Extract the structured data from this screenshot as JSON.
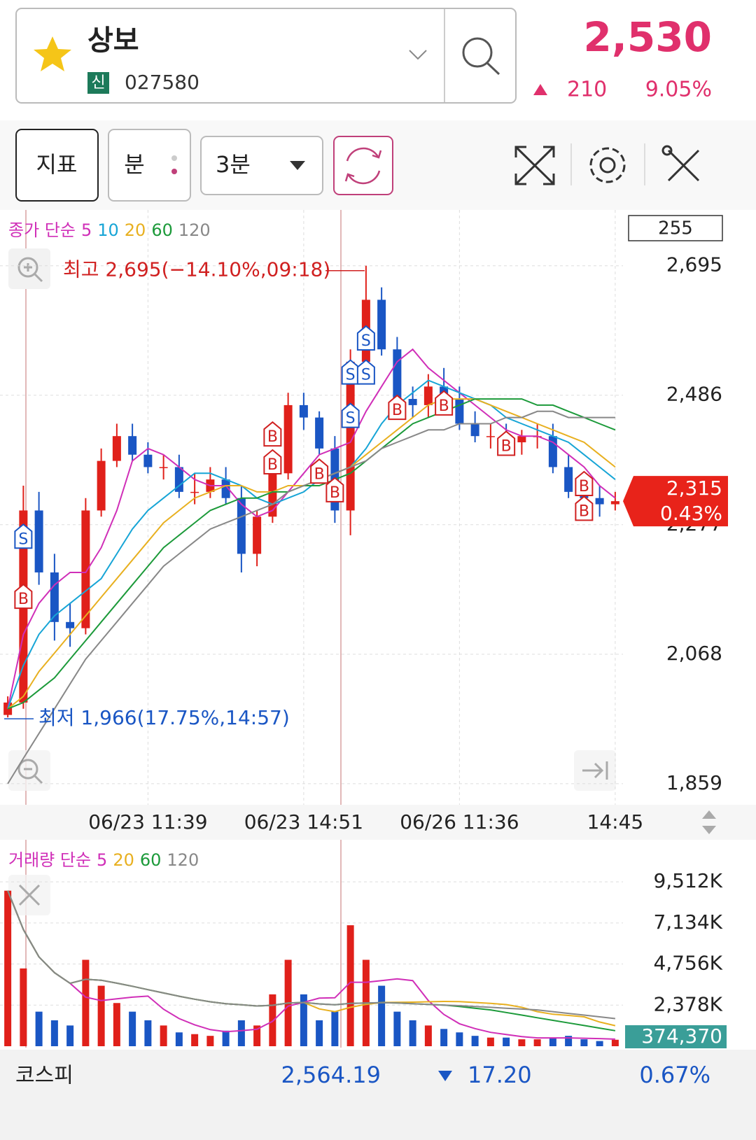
{
  "header": {
    "name": "상보",
    "badge": "신",
    "code": "027580",
    "price": "2,530",
    "change": "210",
    "change_pct": "9.05%"
  },
  "toolbar": {
    "indicator": "지표",
    "minute": "분",
    "interval": "3분"
  },
  "chart_data": [
    {
      "type": "candlestick",
      "legend_title": "종가 단순",
      "counter": "255",
      "high_note": "최고 2,695(−14.10%,09:18)",
      "low_note": "최저 1,966(17.75%,14:57)",
      "last_price_label": "2,315",
      "last_pct_label": "0.43%",
      "up_color": "#e0201a",
      "down_color": "#1a56c4",
      "categories": [
        null,
        null,
        null,
        null,
        null,
        null,
        null,
        null,
        null,
        "06/23 11:39",
        null,
        null,
        null,
        null,
        null,
        null,
        null,
        null,
        null,
        "06/23 14:51",
        null,
        null,
        null,
        null,
        null,
        null,
        null,
        null,
        null,
        "06/26 11:36",
        null,
        null,
        null,
        null,
        null,
        null,
        null,
        null,
        null,
        "14:45"
      ],
      "open": [
        1970,
        1990,
        2300,
        2200,
        2120,
        2110,
        2300,
        2380,
        2420,
        2390,
        2370,
        2370,
        2330,
        2330,
        2350,
        2320,
        2230,
        2290,
        2360,
        2470,
        2450,
        2400,
        2300,
        2540,
        2640,
        2560,
        2480,
        2470,
        2500,
        2480,
        2440,
        2420,
        2420,
        2410,
        2420,
        2420,
        2370,
        2330,
        2320,
        2310
      ],
      "high": [
        2000,
        2340,
        2330,
        2230,
        2150,
        2320,
        2400,
        2440,
        2440,
        2410,
        2390,
        2390,
        2360,
        2370,
        2370,
        2340,
        2300,
        2380,
        2490,
        2490,
        2460,
        2420,
        2560,
        2695,
        2660,
        2580,
        2500,
        2520,
        2530,
        2500,
        2460,
        2440,
        2440,
        2430,
        2440,
        2440,
        2390,
        2350,
        2340,
        2330
      ],
      "low": [
        1966,
        1980,
        2180,
        2090,
        2080,
        2100,
        2290,
        2370,
        2380,
        2360,
        2350,
        2320,
        2310,
        2320,
        2310,
        2200,
        2210,
        2280,
        2350,
        2430,
        2390,
        2280,
        2260,
        2520,
        2550,
        2470,
        2450,
        2450,
        2470,
        2430,
        2410,
        2400,
        2400,
        2390,
        2400,
        2360,
        2320,
        2300,
        2290,
        2300
      ],
      "close": [
        1990,
        2300,
        2200,
        2120,
        2110,
        2300,
        2380,
        2420,
        2390,
        2370,
        2370,
        2330,
        2330,
        2350,
        2320,
        2230,
        2290,
        2360,
        2470,
        2450,
        2400,
        2300,
        2540,
        2640,
        2560,
        2480,
        2470,
        2500,
        2480,
        2440,
        2420,
        2420,
        2410,
        2420,
        2420,
        2370,
        2330,
        2320,
        2310,
        2315
      ],
      "series": [
        {
          "name": "5",
          "color": "#d02fb8",
          "values": [
            1980,
            2100,
            2150,
            2180,
            2200,
            2200,
            2240,
            2300,
            2380,
            2400,
            2390,
            2370,
            2350,
            2340,
            2340,
            2310,
            2290,
            2300,
            2330,
            2360,
            2390,
            2400,
            2410,
            2460,
            2500,
            2540,
            2560,
            2530,
            2510,
            2490,
            2470,
            2450,
            2430,
            2420,
            2420,
            2410,
            2390,
            2370,
            2340,
            2320
          ]
        },
        {
          "name": "10",
          "color": "#17a5d6",
          "values": [
            1980,
            2050,
            2100,
            2130,
            2150,
            2170,
            2190,
            2230,
            2270,
            2300,
            2320,
            2340,
            2360,
            2360,
            2350,
            2340,
            2320,
            2310,
            2320,
            2330,
            2350,
            2360,
            2370,
            2400,
            2440,
            2470,
            2490,
            2510,
            2500,
            2490,
            2480,
            2470,
            2450,
            2440,
            2430,
            2420,
            2410,
            2390,
            2370,
            2350
          ]
        },
        {
          "name": "20",
          "color": "#e8b020",
          "values": [
            1980,
            2000,
            2040,
            2070,
            2100,
            2130,
            2160,
            2190,
            2220,
            2250,
            2280,
            2300,
            2320,
            2330,
            2340,
            2340,
            2330,
            2330,
            2340,
            2340,
            2350,
            2360,
            2370,
            2390,
            2410,
            2430,
            2450,
            2470,
            2480,
            2480,
            2480,
            2470,
            2460,
            2450,
            2440,
            2430,
            2420,
            2410,
            2390,
            2370
          ]
        },
        {
          "name": "60",
          "color": "#1c9a3a",
          "values": [
            1980,
            1990,
            2010,
            2030,
            2060,
            2090,
            2120,
            2150,
            2180,
            2210,
            2240,
            2260,
            2280,
            2300,
            2310,
            2320,
            2320,
            2330,
            2330,
            2340,
            2340,
            2350,
            2360,
            2380,
            2400,
            2420,
            2440,
            2450,
            2460,
            2470,
            2480,
            2480,
            2480,
            2480,
            2470,
            2470,
            2460,
            2450,
            2440,
            2430
          ]
        },
        {
          "name": "120",
          "color": "#888888",
          "values": [
            1859,
            1900,
            1940,
            1980,
            2020,
            2060,
            2090,
            2120,
            2150,
            2180,
            2210,
            2230,
            2250,
            2270,
            2280,
            2290,
            2300,
            2310,
            2330,
            2340,
            2350,
            2360,
            2370,
            2380,
            2400,
            2410,
            2420,
            2430,
            2430,
            2440,
            2440,
            2440,
            2450,
            2450,
            2460,
            2460,
            2450,
            2450,
            2450,
            2450
          ]
        }
      ],
      "markers": [
        {
          "text": "S",
          "bar": 1,
          "value": 2255
        },
        {
          "text": "B",
          "bar": 1,
          "value": 2158
        },
        {
          "text": "B",
          "bar": 17,
          "value": 2420
        },
        {
          "text": "B",
          "bar": 17,
          "value": 2375
        },
        {
          "text": "B",
          "bar": 20,
          "value": 2360
        },
        {
          "text": "B",
          "bar": 21,
          "value": 2330
        },
        {
          "text": "S",
          "bar": 22,
          "value": 2450
        },
        {
          "text": "S",
          "bar": 22,
          "value": 2520
        },
        {
          "text": "S",
          "bar": 23,
          "value": 2520
        },
        {
          "text": "S",
          "bar": 23,
          "value": 2575
        },
        {
          "text": "B",
          "bar": 25,
          "value": 2463
        },
        {
          "text": "B",
          "bar": 28,
          "value": 2470
        },
        {
          "text": "B",
          "bar": 32,
          "value": 2405
        },
        {
          "text": "B",
          "bar": 37,
          "value": 2340
        },
        {
          "text": "B",
          "bar": 37,
          "value": 2300
        }
      ],
      "ylim": [
        1825,
        2785
      ],
      "yticks": [
        {
          "value": 1859,
          "label": "1,859"
        },
        {
          "value": 2068,
          "label": "2,068"
        },
        {
          "value": 2277,
          "label": "2,277"
        },
        {
          "value": 2486,
          "label": "2,486"
        },
        {
          "value": 2695,
          "label": "2,695"
        }
      ],
      "grid": true
    },
    {
      "type": "bar",
      "legend_title": "거래량 단순",
      "last_label": "374,370",
      "values": [
        9000000,
        4500000,
        2000000,
        1500000,
        1200000,
        5000000,
        3500000,
        2500000,
        2000000,
        1500000,
        1200000,
        800000,
        700000,
        600000,
        900000,
        1500000,
        1200000,
        3000000,
        5000000,
        3000000,
        1500000,
        2000000,
        7000000,
        5000000,
        3500000,
        2000000,
        1500000,
        1200000,
        1000000,
        800000,
        600000,
        500000,
        500000,
        400000,
        400000,
        500000,
        600000,
        400000,
        300000,
        374370
      ],
      "series": [
        {
          "name": "5",
          "color": "#d02fb8",
          "values": [
            9000000,
            6750000,
            5170000,
            4250000,
            3640000,
            2840000,
            2640000,
            2740000,
            2840000,
            2900000,
            2140000,
            1600000,
            1240000,
            960000,
            840000,
            900000,
            980000,
            1440000,
            2320000,
            2540000,
            2780000,
            2800000,
            3700000,
            3700000,
            3800000,
            3900000,
            3800000,
            2640000,
            1840000,
            1300000,
            1020000,
            800000,
            680000,
            560000,
            480000,
            480000,
            480000,
            460000,
            440000,
            410000
          ]
        },
        {
          "name": "20",
          "color": "#e8b020",
          "values": [
            9000000,
            6750000,
            5170000,
            4250000,
            3640000,
            3870000,
            3820000,
            3650000,
            3470000,
            3270000,
            3080000,
            2890000,
            2720000,
            2570000,
            2460000,
            2400000,
            2330000,
            2370000,
            2500000,
            2530000,
            2160000,
            2000000,
            2250000,
            2420000,
            2530000,
            2540000,
            2550000,
            2570000,
            2590000,
            2580000,
            2530000,
            2480000,
            2410000,
            2250000,
            2000000,
            1850000,
            1780000,
            1700000,
            1400000,
            1190000
          ]
        },
        {
          "name": "60",
          "color": "#1c9a3a",
          "values": [
            9000000,
            6750000,
            5170000,
            4250000,
            3640000,
            3870000,
            3820000,
            3650000,
            3470000,
            3270000,
            3080000,
            2890000,
            2720000,
            2570000,
            2460000,
            2400000,
            2330000,
            2370000,
            2500000,
            2530000,
            2450000,
            2400000,
            2480000,
            2500000,
            2520000,
            2500000,
            2460000,
            2420000,
            2380000,
            2300000,
            2200000,
            2100000,
            1950000,
            1800000,
            1650000,
            1500000,
            1350000,
            1200000,
            1050000,
            900000
          ]
        },
        {
          "name": "120",
          "color": "#888888",
          "values": [
            9000000,
            6750000,
            5170000,
            4250000,
            3640000,
            3870000,
            3820000,
            3650000,
            3470000,
            3270000,
            3080000,
            2890000,
            2720000,
            2570000,
            2460000,
            2400000,
            2330000,
            2370000,
            2500000,
            2530000,
            2450000,
            2400000,
            2480000,
            2500000,
            2520000,
            2500000,
            2460000,
            2420000,
            2380000,
            2350000,
            2300000,
            2250000,
            2200000,
            2150000,
            2100000,
            2000000,
            1900000,
            1800000,
            1700000,
            1600000
          ]
        }
      ],
      "ylim": [
        0,
        11540000
      ],
      "yticks": [
        {
          "value": 2378000,
          "label": "2,378K"
        },
        {
          "value": 4756000,
          "label": "4,756K"
        },
        {
          "value": 7134000,
          "label": "7,134K"
        },
        {
          "value": 9512000,
          "label": "9,512K"
        }
      ],
      "grid": true
    }
  ],
  "footer": {
    "index_name": "코스피",
    "value": "2,564.19",
    "change": "17.20",
    "change_pct": "0.67%"
  }
}
